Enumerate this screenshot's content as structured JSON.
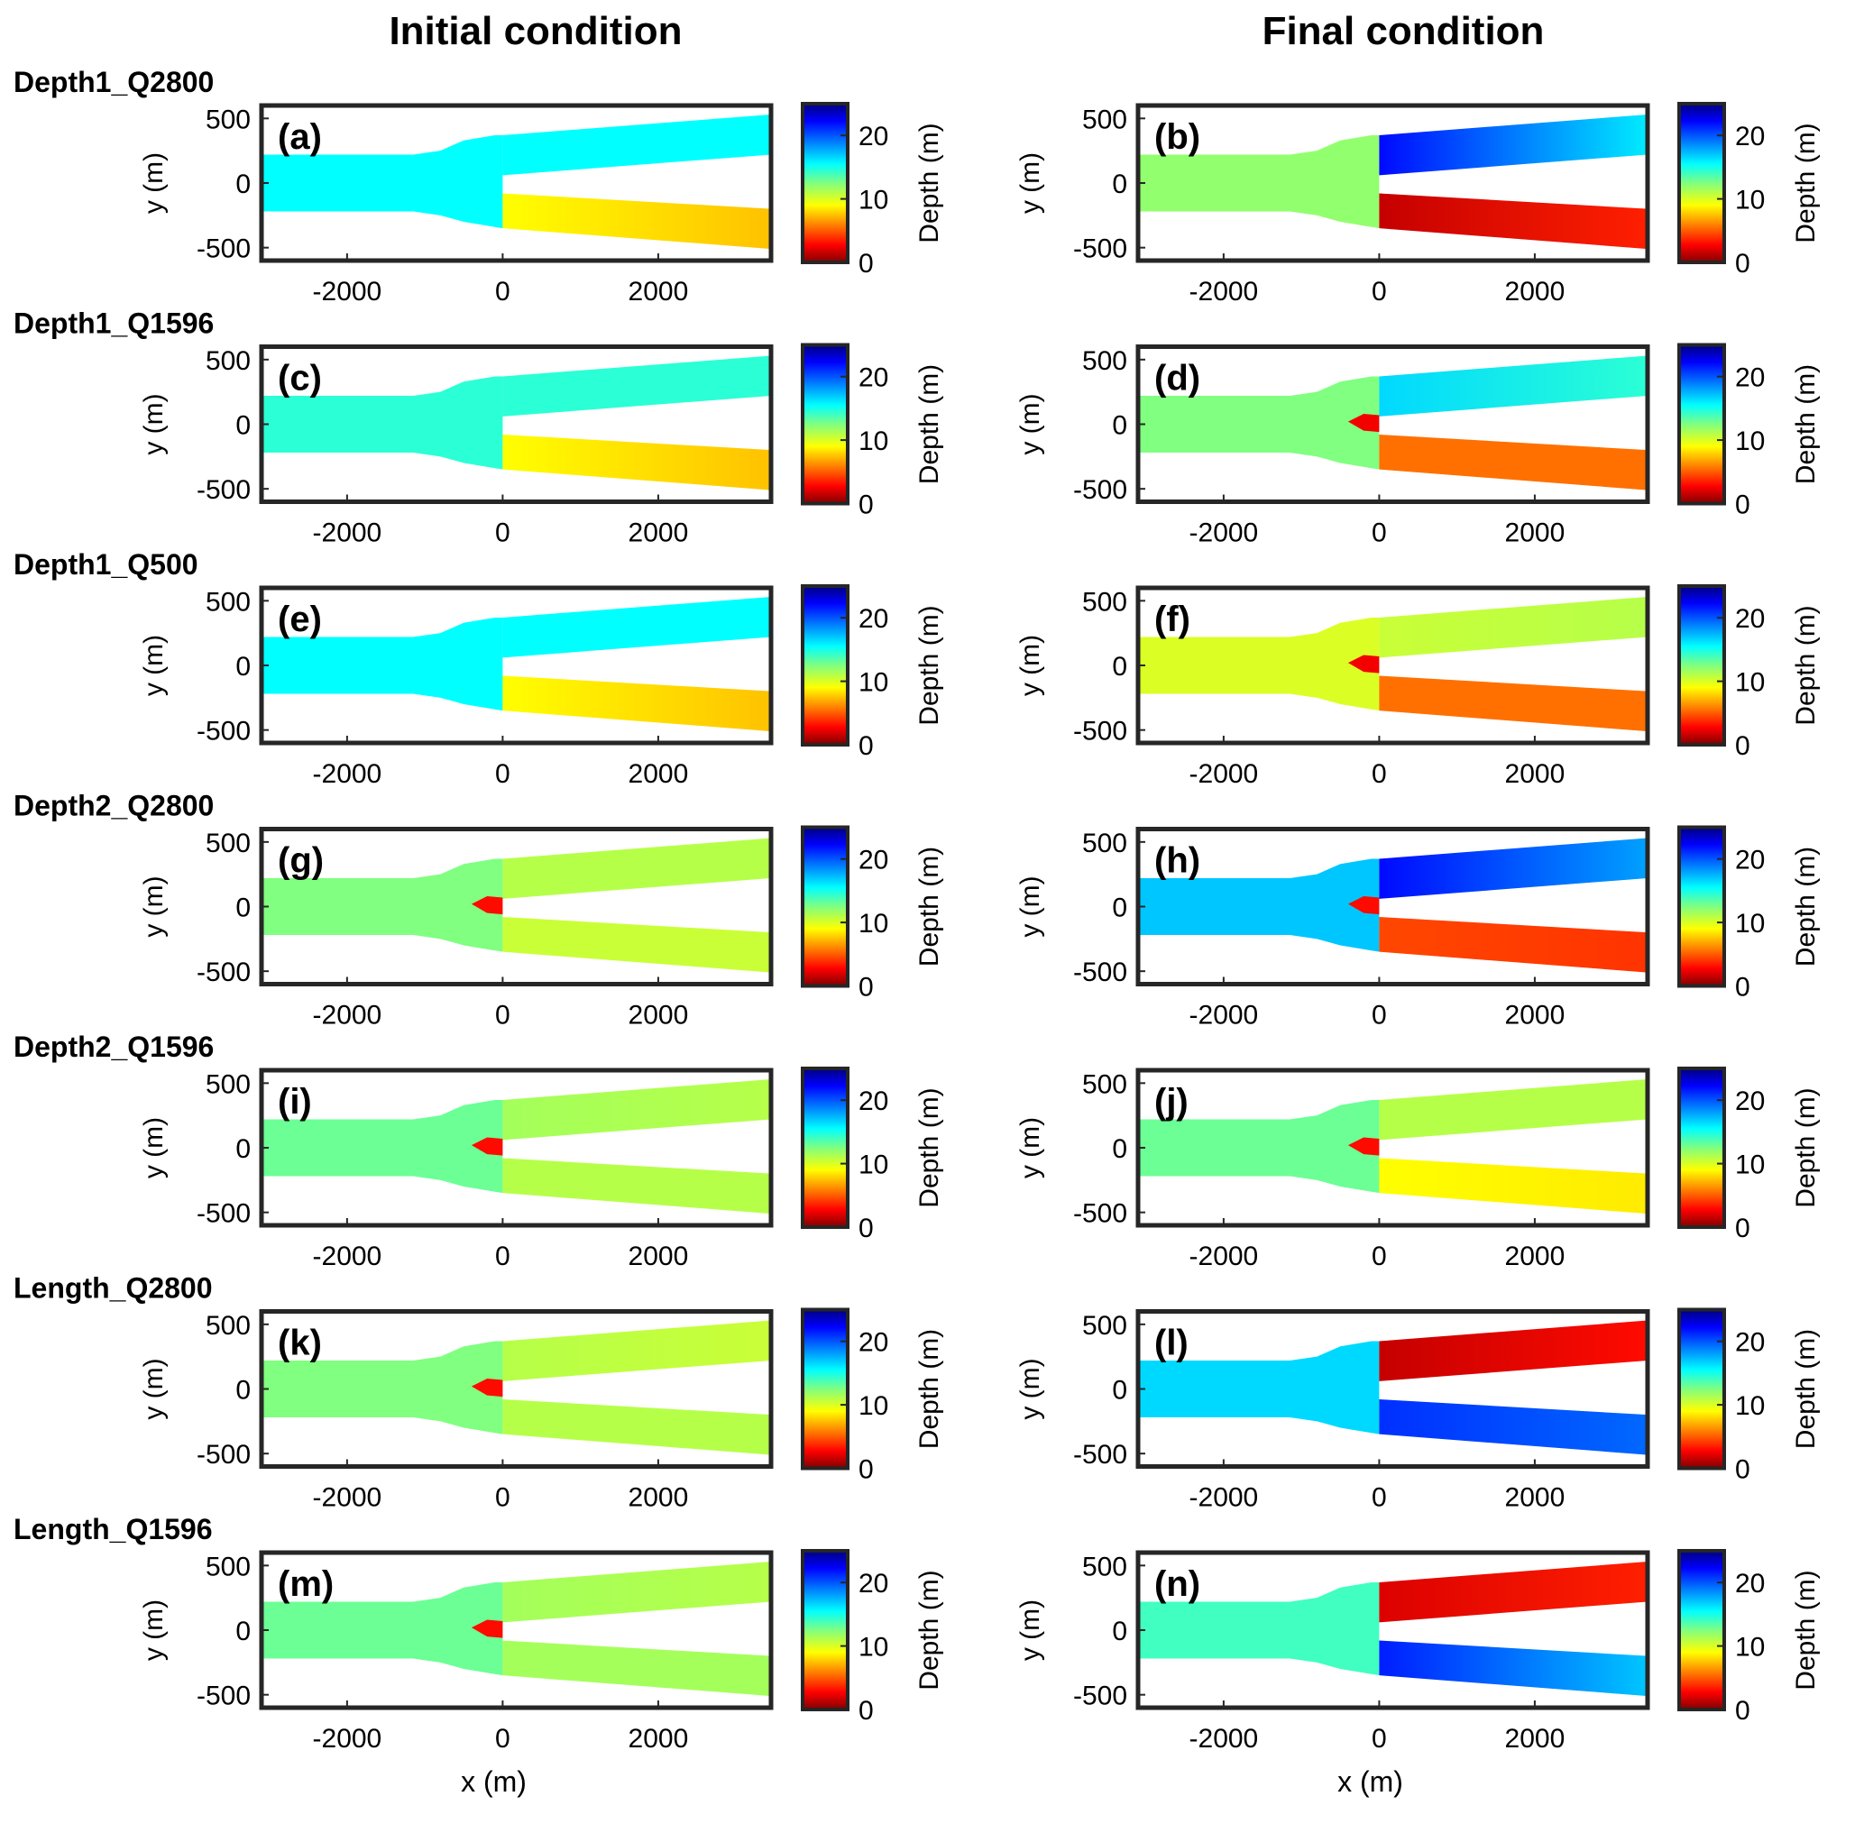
{
  "figure": {
    "column_titles": [
      "Initial condition",
      "Final condition"
    ],
    "row_labels": [
      "Depth1_Q2800",
      "Depth1_Q1596",
      "Depth1_Q500",
      "Depth2_Q2800",
      "Depth2_Q1596",
      "Length_Q2800",
      "Length_Q1596"
    ],
    "panel_labels": [
      "(a)",
      "(b)",
      "(c)",
      "(d)",
      "(e)",
      "(f)",
      "(g)",
      "(h)",
      "(i)",
      "(j)",
      "(k)",
      "(l)",
      "(m)",
      "(n)"
    ],
    "xlabel": "x (m)",
    "ylabel": "y (m)",
    "colorbar_label": "Depth (m)"
  },
  "chart_data": {
    "type": "heatmap",
    "colormap": "jet",
    "clim": [
      0,
      25
    ],
    "colorbar_ticks": [
      0,
      10,
      20
    ],
    "xlim": [
      -3100,
      3450
    ],
    "ylim": [
      -600,
      600
    ],
    "xticks": [
      -2000,
      0,
      2000
    ],
    "yticks": [
      -500,
      0,
      500
    ],
    "panels": [
      {
        "label": "(a)",
        "row": "Depth1_Q2800",
        "condition": "Initial condition",
        "main_depth": 15.5,
        "upper_branch_depth": 15.5,
        "lower_branch_depth": [
          9,
          7.5
        ],
        "bar_depth": null
      },
      {
        "label": "(b)",
        "row": "Depth1_Q2800",
        "condition": "Final condition",
        "main_depth": 12,
        "upper_branch_depth": [
          22,
          16
        ],
        "lower_branch_depth": [
          1.5,
          3.5
        ],
        "bar_depth": null
      },
      {
        "label": "(c)",
        "row": "Depth1_Q1596",
        "condition": "Initial condition",
        "main_depth": 14.5,
        "upper_branch_depth": 14.5,
        "lower_branch_depth": [
          9,
          7.5
        ],
        "bar_depth": null
      },
      {
        "label": "(d)",
        "row": "Depth1_Q1596",
        "condition": "Final condition",
        "main_depth": 12.5,
        "upper_branch_depth": [
          16.5,
          14.5
        ],
        "lower_branch_depth": [
          5.5,
          5.5
        ],
        "bar_depth": 2.5
      },
      {
        "label": "(e)",
        "row": "Depth1_Q500",
        "condition": "Initial condition",
        "main_depth": 15.5,
        "upper_branch_depth": 15.5,
        "lower_branch_depth": [
          9,
          7.5
        ],
        "bar_depth": null
      },
      {
        "label": "(f)",
        "row": "Depth1_Q500",
        "condition": "Final condition",
        "main_depth": 10,
        "upper_branch_depth": [
          10.5,
          11
        ],
        "lower_branch_depth": [
          5.5,
          5.5
        ],
        "bar_depth": 2.5
      },
      {
        "label": "(g)",
        "row": "Depth2_Q2800",
        "condition": "Initial condition",
        "main_depth": 12.5,
        "upper_branch_depth": [
          11,
          11
        ],
        "lower_branch_depth": [
          10.5,
          10.5
        ],
        "bar_depth": 3
      },
      {
        "label": "(h)",
        "row": "Depth2_Q2800",
        "condition": "Final condition",
        "main_depth": 17,
        "upper_branch_depth": [
          22,
          18
        ],
        "lower_branch_depth": [
          4.5,
          4
        ],
        "bar_depth": 3
      },
      {
        "label": "(i)",
        "row": "Depth2_Q1596",
        "condition": "Initial condition",
        "main_depth": 13,
        "upper_branch_depth": [
          11.5,
          11
        ],
        "lower_branch_depth": [
          11,
          11
        ],
        "bar_depth": 3
      },
      {
        "label": "(j)",
        "row": "Depth2_Q1596",
        "condition": "Final condition",
        "main_depth": 13,
        "upper_branch_depth": [
          11,
          11
        ],
        "lower_branch_depth": [
          9,
          8.5
        ],
        "bar_depth": 3
      },
      {
        "label": "(k)",
        "row": "Length_Q2800",
        "condition": "Initial condition",
        "main_depth": 12.5,
        "upper_branch_depth": [
          11,
          10.5
        ],
        "lower_branch_depth": [
          11,
          11
        ],
        "bar_depth": 3
      },
      {
        "label": "(l)",
        "row": "Length_Q2800",
        "condition": "Final condition",
        "main_depth": 16.5,
        "upper_branch_depth": [
          1.5,
          3
        ],
        "lower_branch_depth": [
          21,
          19.5
        ],
        "bar_depth": null
      },
      {
        "label": "(m)",
        "row": "Length_Q1596",
        "condition": "Initial condition",
        "main_depth": 13,
        "upper_branch_depth": [
          11.5,
          11
        ],
        "lower_branch_depth": [
          11.5,
          11.5
        ],
        "bar_depth": 3
      },
      {
        "label": "(n)",
        "row": "Length_Q1596",
        "condition": "Final condition",
        "main_depth": 14,
        "upper_branch_depth": [
          2,
          3.5
        ],
        "lower_branch_depth": [
          21.5,
          17
        ],
        "bar_depth": null
      }
    ]
  }
}
